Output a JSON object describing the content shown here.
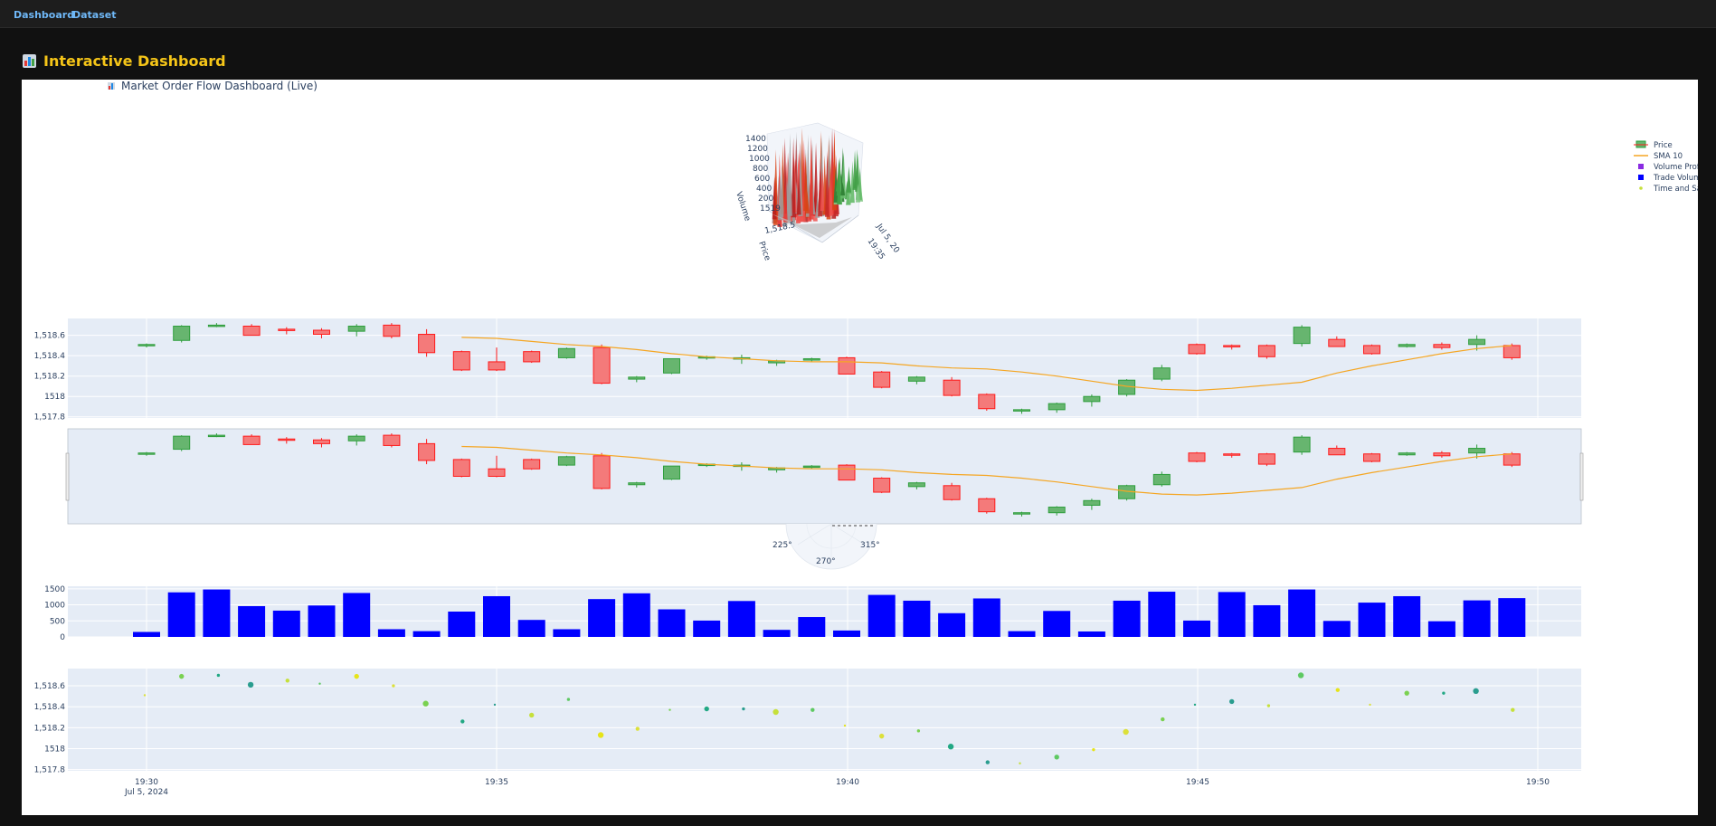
{
  "nav": {
    "links": [
      "Dashboard",
      "Dataset"
    ]
  },
  "page": {
    "title": "Interactive Dashboard"
  },
  "figure": {
    "title": "Market Order Flow Dashboard (Live)"
  },
  "legend": {
    "items": [
      {
        "label": "Price",
        "kind": "candle"
      },
      {
        "label": "SMA 10",
        "kind": "line",
        "color": "#f5a623"
      },
      {
        "label": "Volume Profile",
        "kind": "square",
        "color": "#8a2be2"
      },
      {
        "label": "Trade Volume",
        "kind": "square",
        "color": "#0000ff"
      },
      {
        "label": "Time and Sales",
        "kind": "dot",
        "color": "#c6e03b"
      }
    ]
  },
  "surface3d": {
    "zlabel": "Volume",
    "ylabel": "Price",
    "zticks": [
      "1400",
      "1200",
      "1000",
      "800",
      "600",
      "400",
      "200",
      "1519"
    ],
    "ytick": "1,518.5",
    "xticks": [
      "19:35",
      "Jul 5, 20"
    ]
  },
  "polar": {
    "ticks": [
      "225°",
      "270°",
      "315°"
    ]
  },
  "colors": {
    "up": "#2e9e3c",
    "up_fill": "#67b56f",
    "down": "#ff1a1a",
    "down_fill": "#f47a7a",
    "sma": "#f5a623",
    "volume": "#0000ff",
    "plot_bg": "#e5ecf6"
  },
  "chart_data": [
    {
      "type": "candlestick",
      "name": "Price",
      "x": [
        "19:30",
        "19:30:30",
        "19:31",
        "19:31:30",
        "19:32",
        "19:32:30",
        "19:33",
        "19:33:30",
        "19:34",
        "19:34:30",
        "19:35",
        "19:35:30",
        "19:36",
        "19:36:30",
        "19:37",
        "19:37:30",
        "19:38",
        "19:38:30",
        "19:39",
        "19:39:30",
        "19:40",
        "19:40:30",
        "19:41",
        "19:41:30",
        "19:42",
        "19:42:30",
        "19:43",
        "19:43:30",
        "19:44",
        "19:44:30",
        "19:45",
        "19:45:30",
        "19:46",
        "19:46:30",
        "19:47",
        "19:47:30",
        "19:48",
        "19:48:30",
        "19:49",
        "19:49:30"
      ],
      "open": [
        1518.5,
        1518.55,
        1518.69,
        1518.69,
        1518.66,
        1518.65,
        1518.64,
        1518.7,
        1518.61,
        1518.44,
        1518.34,
        1518.44,
        1518.38,
        1518.48,
        1518.17,
        1518.23,
        1518.38,
        1518.37,
        1518.33,
        1518.36,
        1518.38,
        1518.24,
        1518.15,
        1518.16,
        1518.02,
        1517.86,
        1517.87,
        1517.95,
        1518.02,
        1518.17,
        1518.51,
        1518.5,
        1518.5,
        1518.52,
        1518.56,
        1518.5,
        1518.49,
        1518.51,
        1518.51,
        1518.5
      ],
      "high": [
        1518.52,
        1518.7,
        1518.72,
        1518.71,
        1518.68,
        1518.67,
        1518.71,
        1518.72,
        1518.66,
        1518.45,
        1518.48,
        1518.45,
        1518.48,
        1518.51,
        1518.2,
        1518.37,
        1518.4,
        1518.41,
        1518.36,
        1518.38,
        1518.39,
        1518.25,
        1518.2,
        1518.19,
        1518.03,
        1517.88,
        1517.94,
        1518.02,
        1518.17,
        1518.31,
        1518.52,
        1518.51,
        1518.51,
        1518.7,
        1518.59,
        1518.51,
        1518.52,
        1518.53,
        1518.6,
        1518.52
      ],
      "low": [
        1518.48,
        1518.53,
        1518.68,
        1518.6,
        1518.61,
        1518.57,
        1518.59,
        1518.57,
        1518.39,
        1518.25,
        1518.25,
        1518.33,
        1518.37,
        1518.12,
        1518.14,
        1518.22,
        1518.36,
        1518.32,
        1518.3,
        1518.34,
        1518.22,
        1518.08,
        1518.12,
        1518.0,
        1517.86,
        1517.83,
        1517.84,
        1517.9,
        1518.0,
        1518.15,
        1518.41,
        1518.46,
        1518.37,
        1518.49,
        1518.49,
        1518.41,
        1518.48,
        1518.46,
        1518.45,
        1518.36
      ],
      "close": [
        1518.51,
        1518.69,
        1518.7,
        1518.6,
        1518.65,
        1518.61,
        1518.69,
        1518.59,
        1518.43,
        1518.26,
        1518.26,
        1518.34,
        1518.47,
        1518.13,
        1518.19,
        1518.37,
        1518.39,
        1518.38,
        1518.35,
        1518.37,
        1518.22,
        1518.09,
        1518.19,
        1518.01,
        1517.88,
        1517.87,
        1517.93,
        1518.0,
        1518.16,
        1518.28,
        1518.42,
        1518.49,
        1518.39,
        1518.68,
        1518.49,
        1518.42,
        1518.51,
        1518.48,
        1518.56,
        1518.38
      ],
      "yticks": [
        "1,518.6",
        "1,518.4",
        "1,518.2",
        "1518",
        "1,517.8"
      ],
      "ylim": [
        1517.78,
        1518.73
      ]
    },
    {
      "type": "line",
      "name": "SMA 10",
      "x_start_index": 9,
      "values": [
        1518.58,
        1518.57,
        1518.54,
        1518.51,
        1518.49,
        1518.46,
        1518.42,
        1518.39,
        1518.37,
        1518.35,
        1518.34,
        1518.34,
        1518.33,
        1518.3,
        1518.28,
        1518.27,
        1518.24,
        1518.2,
        1518.15,
        1518.1,
        1518.07,
        1518.06,
        1518.08,
        1518.11,
        1518.14,
        1518.23,
        1518.3,
        1518.36,
        1518.42,
        1518.47,
        1518.5
      ]
    },
    {
      "type": "bar",
      "name": "Trade Volume",
      "values": [
        155,
        1390,
        1480,
        960,
        820,
        980,
        1370,
        240,
        180,
        790,
        1270,
        530,
        240,
        1180,
        1360,
        860,
        510,
        1120,
        220,
        620,
        200,
        1310,
        1130,
        740,
        1200,
        180,
        810,
        170,
        1130,
        1410,
        510,
        1400,
        990,
        1480,
        500,
        1070,
        1270,
        490,
        1140,
        1210
      ],
      "yticks": [
        "1500",
        "1000",
        "500",
        "0"
      ],
      "ylim": [
        0,
        1580
      ]
    },
    {
      "type": "scatter",
      "name": "Time and Sales",
      "values": [
        1518.51,
        1518.69,
        1518.7,
        1518.61,
        1518.65,
        1518.62,
        1518.69,
        1518.6,
        1518.43,
        1518.26,
        1518.42,
        1518.32,
        1518.47,
        1518.13,
        1518.19,
        1518.37,
        1518.38,
        1518.38,
        1518.35,
        1518.37,
        1518.22,
        1518.12,
        1518.17,
        1518.02,
        1517.87,
        1517.86,
        1517.92,
        1517.99,
        1518.16,
        1518.28,
        1518.42,
        1518.45,
        1518.41,
        1518.7,
        1518.56,
        1518.42,
        1518.53,
        1518.53,
        1518.55,
        1518.37
      ],
      "yticks": [
        "1,518.6",
        "1,518.4",
        "1,518.2",
        "1518",
        "1,517.8"
      ],
      "xticks": [
        "19:30",
        "19:35",
        "19:40",
        "19:45",
        "19:50"
      ],
      "xdate": "Jul 5, 2024"
    }
  ]
}
